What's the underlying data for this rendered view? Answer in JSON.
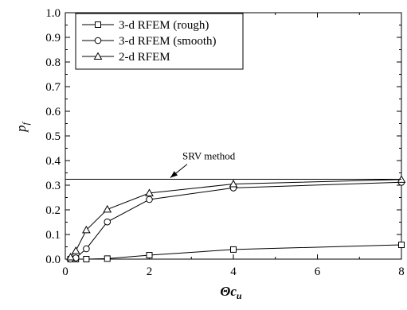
{
  "chart_data": {
    "type": "line",
    "xlabel": "Θc",
    "xlabel_sub": "u",
    "ylabel": "p",
    "ylabel_sub": "f",
    "xlim": [
      0,
      8
    ],
    "ylim": [
      0,
      1.0
    ],
    "x_scale": "piecewise-linear",
    "x_ticks": [
      {
        "value": 0,
        "label": "0"
      },
      {
        "value": 2,
        "label": "2"
      },
      {
        "value": 4,
        "label": "4"
      },
      {
        "value": 6,
        "label": "6"
      },
      {
        "value": 8,
        "label": "8"
      }
    ],
    "y_ticks": [
      {
        "value": 0.0,
        "label": "0.0"
      },
      {
        "value": 0.1,
        "label": "0.1"
      },
      {
        "value": 0.2,
        "label": "0.2"
      },
      {
        "value": 0.3,
        "label": "0.3"
      },
      {
        "value": 0.4,
        "label": "0.4"
      },
      {
        "value": 0.5,
        "label": "0.5"
      },
      {
        "value": 0.6,
        "label": "0.6"
      },
      {
        "value": 0.7,
        "label": "0.7"
      },
      {
        "value": 0.8,
        "label": "0.8"
      },
      {
        "value": 0.9,
        "label": "0.9"
      },
      {
        "value": 1.0,
        "label": "1.0"
      }
    ],
    "grid": false,
    "legend_position": "top-left",
    "series": [
      {
        "name": "3-d RFEM (rough)",
        "marker": "square",
        "x": [
          0.125,
          0.25,
          0.5,
          1,
          2,
          4,
          8
        ],
        "y": [
          0.0,
          0.0,
          0.0,
          0.002,
          0.016,
          0.039,
          0.058
        ]
      },
      {
        "name": "3-d RFEM (smooth)",
        "marker": "circle",
        "x": [
          0.125,
          0.25,
          0.5,
          1,
          2,
          4,
          8
        ],
        "y": [
          0.0,
          0.005,
          0.042,
          0.151,
          0.242,
          0.289,
          0.312
        ]
      },
      {
        "name": "2-d RFEM",
        "marker": "triangle",
        "x": [
          0.125,
          0.25,
          0.5,
          1,
          2,
          4,
          8
        ],
        "y": [
          0.008,
          0.034,
          0.118,
          0.202,
          0.268,
          0.305,
          0.323
        ]
      }
    ],
    "reference_line": {
      "y": 0.324
    },
    "annotations": [
      {
        "text": "SRV method",
        "points_to": {
          "x": 2.5,
          "y": 0.324
        }
      }
    ]
  }
}
